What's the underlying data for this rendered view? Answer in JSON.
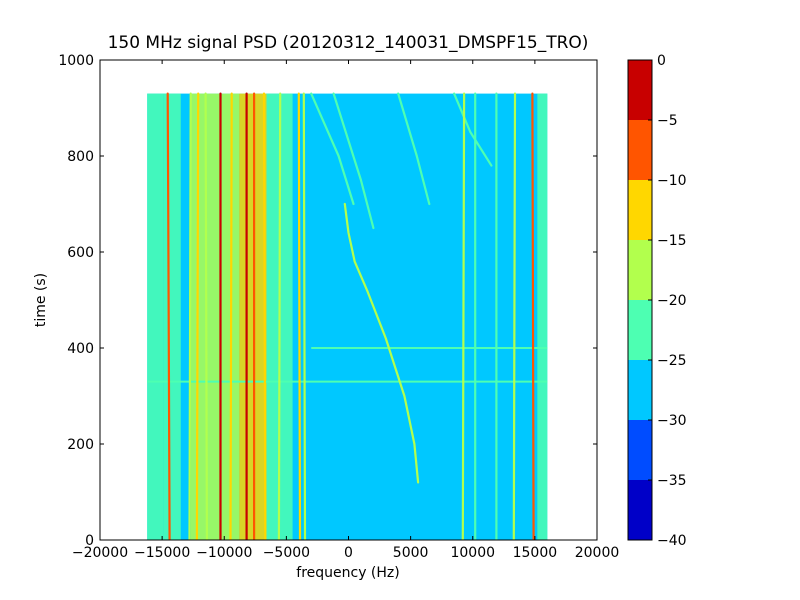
{
  "chart_data": {
    "type": "heatmap",
    "title": "150 MHz signal PSD (20120312_140031_DMSPF15_TRO)",
    "xlabel": "frequency (Hz)",
    "ylabel": "time (s)",
    "xlim": [
      -20000,
      20000
    ],
    "ylim": [
      0,
      1000
    ],
    "x_ticks": [
      -20000,
      -15000,
      -10000,
      -5000,
      0,
      5000,
      10000,
      15000,
      20000
    ],
    "x_tick_labels": [
      "−20000",
      "−15000",
      "−10000",
      "−5000",
      "0",
      "5000",
      "10000",
      "15000",
      "20000"
    ],
    "y_ticks": [
      0,
      200,
      400,
      600,
      800,
      1000
    ],
    "y_tick_labels": [
      "0",
      "200",
      "400",
      "600",
      "800",
      "1000"
    ],
    "data_extent": {
      "freq": [
        -16200,
        16000
      ],
      "time": [
        0,
        930
      ]
    },
    "background_level": -27.5,
    "colorbar": {
      "levels": [
        -40,
        -35,
        -30,
        -25,
        -20,
        -15,
        -10,
        -5,
        0
      ],
      "tick_labels": [
        "−40",
        "−35",
        "−30",
        "−25",
        "−20",
        "−15",
        "−10",
        "−5",
        "0"
      ],
      "colors": [
        "#0000c8",
        "#004cff",
        "#00c8ff",
        "#4dffb2",
        "#b2ff4d",
        "#ffd700",
        "#ff5500",
        "#c80000"
      ]
    },
    "bands": [
      {
        "f": [
          -16200,
          -14900
        ],
        "level": -22.5
      },
      {
        "f": [
          -14900,
          -13500
        ],
        "level": -22.5
      },
      {
        "f": [
          -12700,
          -8800
        ],
        "level": -17.5
      },
      {
        "f": [
          -8800,
          -6600
        ],
        "level": -12.5
      },
      {
        "f": [
          -6600,
          -4500
        ],
        "level": -22.5
      },
      {
        "f": [
          15200,
          16000
        ],
        "level": -22.5
      }
    ],
    "lines": [
      {
        "points": [
          [
            -14400,
            0
          ],
          [
            -14500,
            660
          ],
          [
            -14550,
            930
          ]
        ],
        "level": -7.5
      },
      {
        "points": [
          [
            -12800,
            0
          ],
          [
            -12700,
            930
          ]
        ],
        "level": -17.5
      },
      {
        "points": [
          [
            -12200,
            0
          ],
          [
            -12100,
            930
          ]
        ],
        "level": -12.5
      },
      {
        "points": [
          [
            -11400,
            0
          ],
          [
            -11500,
            930
          ]
        ],
        "level": -17.5
      },
      {
        "points": [
          [
            -10300,
            0
          ],
          [
            -10300,
            930
          ]
        ],
        "level": -2.5
      },
      {
        "points": [
          [
            -9500,
            0
          ],
          [
            -9400,
            930
          ]
        ],
        "level": -12.5
      },
      {
        "points": [
          [
            -8200,
            0
          ],
          [
            -8200,
            930
          ]
        ],
        "level": -2.5
      },
      {
        "points": [
          [
            -7600,
            0
          ],
          [
            -7600,
            930
          ]
        ],
        "level": -7.5
      },
      {
        "points": [
          [
            -6700,
            0
          ],
          [
            -6800,
            930
          ]
        ],
        "level": -12.5
      },
      {
        "points": [
          [
            -5600,
            0
          ],
          [
            -5500,
            930
          ]
        ],
        "level": -17.5
      },
      {
        "points": [
          [
            -3900,
            0
          ],
          [
            -4000,
            930
          ]
        ],
        "level": -12.5
      },
      {
        "points": [
          [
            -3500,
            0
          ],
          [
            -3600,
            930
          ]
        ],
        "level": -17.5
      },
      {
        "points": [
          [
            5600,
            120
          ],
          [
            5300,
            200
          ],
          [
            4500,
            300
          ],
          [
            3000,
            420
          ],
          [
            1500,
            520
          ],
          [
            500,
            580
          ],
          [
            0,
            640
          ],
          [
            -300,
            700
          ]
        ],
        "level": -17.5
      },
      {
        "points": [
          [
            -3000,
            930
          ],
          [
            -800,
            800
          ],
          [
            400,
            700
          ]
        ],
        "level": -22.5
      },
      {
        "points": [
          [
            4000,
            930
          ],
          [
            5500,
            800
          ],
          [
            6500,
            700
          ]
        ],
        "level": -22.5
      },
      {
        "points": [
          [
            -1200,
            930
          ],
          [
            1000,
            750
          ],
          [
            2000,
            650
          ]
        ],
        "level": -22.5
      },
      {
        "points": [
          [
            8500,
            930
          ],
          [
            9800,
            850
          ],
          [
            11500,
            780
          ]
        ],
        "level": -22.5
      },
      {
        "points": [
          [
            9200,
            0
          ],
          [
            9300,
            930
          ]
        ],
        "level": -17.5
      },
      {
        "points": [
          [
            10200,
            0
          ],
          [
            10200,
            930
          ]
        ],
        "level": -22.5
      },
      {
        "points": [
          [
            11900,
            0
          ],
          [
            11900,
            930
          ]
        ],
        "level": -22.5
      },
      {
        "points": [
          [
            13300,
            0
          ],
          [
            13400,
            930
          ]
        ],
        "level": -17.5
      },
      {
        "points": [
          [
            14900,
            0
          ],
          [
            14800,
            930
          ]
        ],
        "level": -7.5
      }
    ],
    "hlines": [
      {
        "t": 330,
        "f": [
          -16200,
          16000
        ],
        "level": -22.5
      },
      {
        "t": 400,
        "f": [
          -3000,
          16000
        ],
        "level": -22.5
      }
    ]
  }
}
